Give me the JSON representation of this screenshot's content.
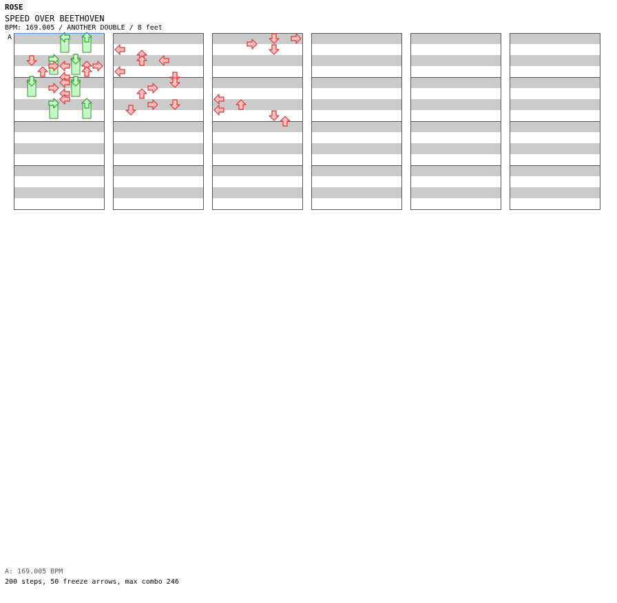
{
  "header": {
    "artist": "ROSE",
    "title": "SPEED OVER BEETHOVEN",
    "meta": "BPM: 169.005 / ANOTHER DOUBLE / 8 feet"
  },
  "bpm_marker": {
    "label": "A"
  },
  "footer": {
    "bpm_line": "A: 169.005 BPM",
    "stats": "200 steps, 50 freeze arrows, max combo 246"
  },
  "colors": {
    "note_red_fill": "#ffc0c0",
    "note_red_stroke": "#e03030",
    "note_blue_fill": "#8ec4f4",
    "note_blue_stroke": "#2a78c8",
    "freeze_fill": "#c8f8c8",
    "freeze_stroke": "#2f9a2f",
    "stripe": "#cbcbcb",
    "border": "#555555",
    "bpm_line": "#4a90d0"
  },
  "chart_data": {
    "type": "step-chart",
    "style": "ANOTHER DOUBLE",
    "bpm": 169.005,
    "lanes": [
      "L1",
      "D1",
      "U1",
      "R1",
      "L2",
      "D2",
      "U2",
      "R2"
    ],
    "columns": 6,
    "measures_per_column": 4,
    "rows_per_measure": 16,
    "notes": [
      {
        "row": 5,
        "lane": 7,
        "color": "red"
      },
      {
        "row": 6,
        "lane": 7,
        "color": "red"
      },
      {
        "row": 5,
        "lane": 8,
        "color": "red"
      },
      {
        "row": 4,
        "lane": 2,
        "color": "red"
      },
      {
        "row": 6,
        "lane": 3,
        "color": "red"
      },
      {
        "row": 7,
        "lane": 5,
        "color": "red"
      },
      {
        "row": 8,
        "lane": 5,
        "color": "red"
      },
      {
        "row": 5,
        "lane": 4,
        "color": "red"
      },
      {
        "row": 5,
        "lane": 5,
        "color": "red"
      },
      {
        "row": 9,
        "lane": 4,
        "color": "red"
      },
      {
        "row": 10,
        "lane": 5,
        "color": "red"
      },
      {
        "row": 11,
        "lane": 5,
        "color": "red"
      },
      {
        "row": 12,
        "lane": 4,
        "color": "red"
      },
      {
        "row": 12,
        "lane": 6,
        "color": "red"
      },
      {
        "row": 13,
        "lane": 2,
        "color": "red"
      },
      {
        "row": 2,
        "lane": 1,
        "color": "red"
      },
      {
        "row": 3,
        "lane": 3,
        "color": "red"
      },
      {
        "row": 4,
        "lane": 3,
        "color": "red"
      },
      {
        "row": 4,
        "lane": 5,
        "color": "red"
      },
      {
        "row": 6,
        "lane": 1,
        "color": "red"
      },
      {
        "row": 7,
        "lane": 6,
        "color": "red"
      },
      {
        "row": 8,
        "lane": 6,
        "color": "red"
      },
      {
        "row": 9,
        "lane": 4,
        "color": "red"
      },
      {
        "row": 10,
        "lane": 3,
        "color": "red"
      },
      {
        "row": 11,
        "lane": 1,
        "color": "red"
      },
      {
        "row": 12,
        "lane": 3,
        "color": "red"
      },
      {
        "row": 13,
        "lane": 1,
        "color": "red"
      },
      {
        "row": 14,
        "lane": 6,
        "color": "red"
      },
      {
        "row": 15,
        "lane": 7,
        "color": "red"
      },
      {
        "row": 0,
        "lane": 8,
        "color": "red"
      },
      {
        "row": 0,
        "lane": 6,
        "color": "red"
      },
      {
        "row": 1,
        "lane": 4,
        "color": "red"
      },
      {
        "row": 2,
        "lane": 6,
        "color": "red"
      }
    ],
    "freezes": [
      {
        "row": 0,
        "lane": 5,
        "length": 2
      },
      {
        "row": 0,
        "lane": 7,
        "length": 2
      },
      {
        "row": 4,
        "lane": 4,
        "length": 2
      },
      {
        "row": 4,
        "lane": 6,
        "length": 2
      },
      {
        "row": 8,
        "lane": 2,
        "length": 2
      },
      {
        "row": 8,
        "lane": 6,
        "length": 2
      },
      {
        "row": 12,
        "lane": 4,
        "length": 2
      },
      {
        "row": 12,
        "lane": 7,
        "length": 2
      }
    ]
  }
}
